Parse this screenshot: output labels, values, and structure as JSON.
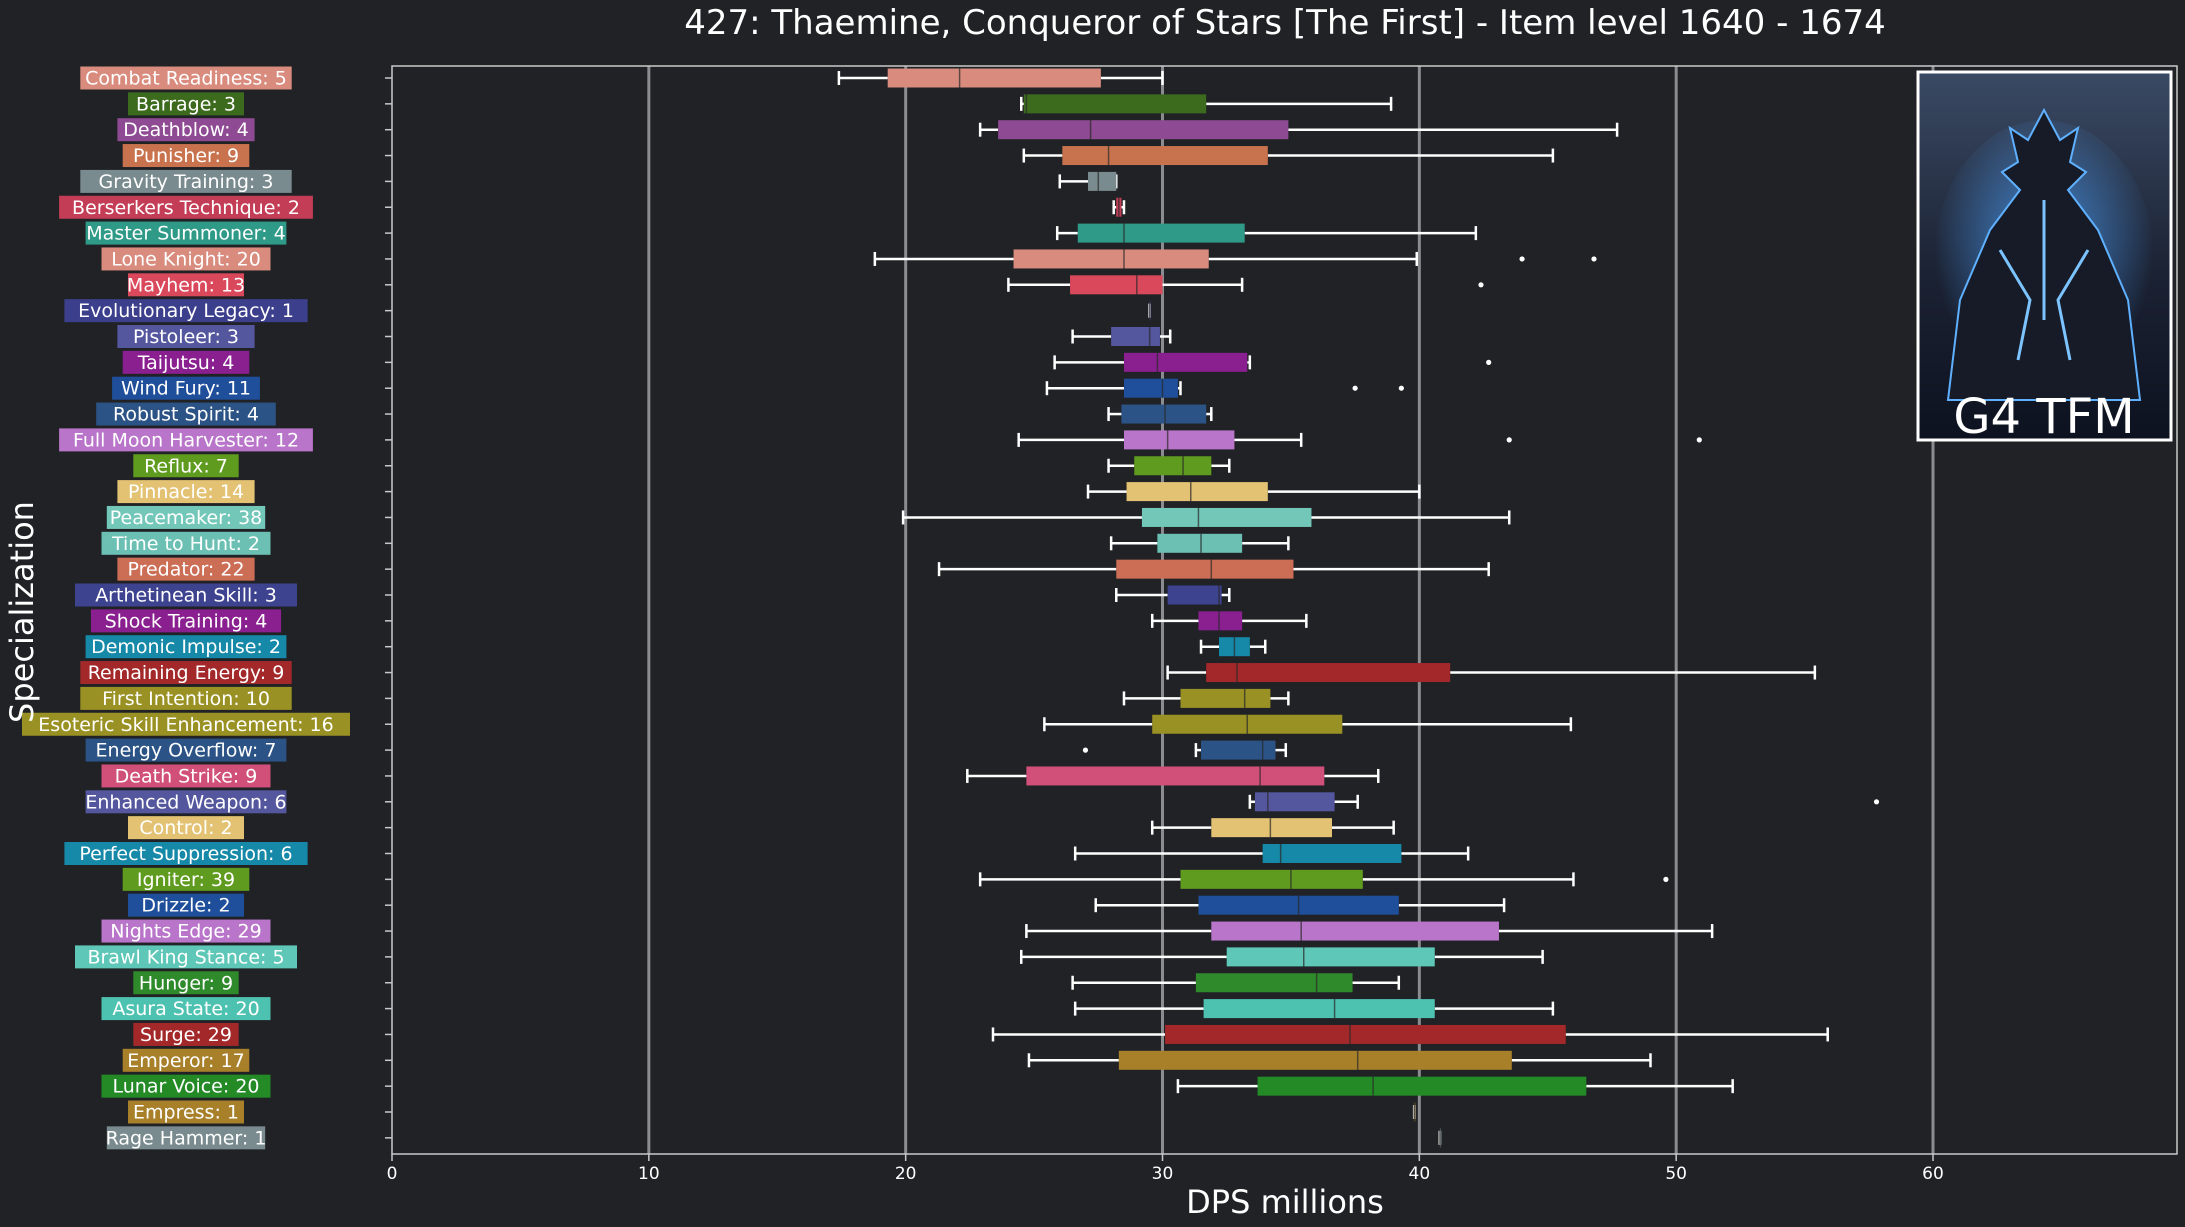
{
  "chart_data": {
    "type": "boxplot",
    "orientation": "horizontal",
    "title": "427: Thaemine, Conqueror of Stars [The First] - Item level 1640 - 1674",
    "xlabel": "DPS millions",
    "ylabel": "Specialization",
    "xlim": [
      0,
      69.5
    ],
    "xticks": [
      0,
      10,
      20,
      30,
      40,
      50,
      60
    ],
    "grid": "vertical",
    "inset": {
      "label": "G4 TFM",
      "image": "boss-portrait"
    },
    "categories": [
      {
        "label": "Combat Readiness: 5",
        "color": "#d98c7e",
        "whisker_low": 17.4,
        "q1": 19.3,
        "median": 22.1,
        "q3": 27.6,
        "whisker_high": 30.0,
        "outliers": []
      },
      {
        "label": "Barrage: 3",
        "color": "#3d6b1e",
        "whisker_low": 24.5,
        "q1": 24.6,
        "median": 24.7,
        "q3": 31.7,
        "whisker_high": 38.9,
        "outliers": []
      },
      {
        "label": "Deathblow: 4",
        "color": "#8e4a92",
        "whisker_low": 22.9,
        "q1": 23.6,
        "median": 27.2,
        "q3": 34.9,
        "whisker_high": 47.7,
        "outliers": []
      },
      {
        "label": "Punisher: 9",
        "color": "#c9734e",
        "whisker_low": 24.6,
        "q1": 26.1,
        "median": 27.9,
        "q3": 34.1,
        "whisker_high": 45.2,
        "outliers": []
      },
      {
        "label": "Gravity Training: 3",
        "color": "#7a8b8f",
        "whisker_low": 26.0,
        "q1": 27.1,
        "median": 27.5,
        "q3": 28.2,
        "whisker_high": 28.2,
        "outliers": []
      },
      {
        "label": "Berserkers Technique: 2",
        "color": "#c43d57",
        "whisker_low": 28.1,
        "q1": 28.2,
        "median": 28.3,
        "q3": 28.4,
        "whisker_high": 28.5,
        "outliers": []
      },
      {
        "label": "Master Summoner: 4",
        "color": "#2e9a87",
        "whisker_low": 25.9,
        "q1": 26.7,
        "median": 28.5,
        "q3": 33.2,
        "whisker_high": 42.2,
        "outliers": []
      },
      {
        "label": "Lone Knight: 20",
        "color": "#d98c7e",
        "whisker_low": 18.8,
        "q1": 24.2,
        "median": 28.5,
        "q3": 31.8,
        "whisker_high": 39.9,
        "outliers": [
          44.0,
          46.8
        ]
      },
      {
        "label": "Mayhem: 13",
        "color": "#d9485b",
        "whisker_low": 24.0,
        "q1": 26.4,
        "median": 29.0,
        "q3": 30.0,
        "whisker_high": 33.1,
        "outliers": [
          42.4
        ]
      },
      {
        "label": "Evolutionary Legacy: 1",
        "color": "#3c3f8c",
        "whisker_low": 29.5,
        "q1": 29.5,
        "median": 29.5,
        "q3": 29.5,
        "whisker_high": 29.5,
        "outliers": []
      },
      {
        "label": "Pistoleer: 3",
        "color": "#54579e",
        "whisker_low": 26.5,
        "q1": 28.0,
        "median": 29.5,
        "q3": 29.9,
        "whisker_high": 30.3,
        "outliers": []
      },
      {
        "label": "Taijutsu: 4",
        "color": "#8a1f8f",
        "whisker_low": 25.8,
        "q1": 28.5,
        "median": 29.8,
        "q3": 33.3,
        "whisker_high": 33.4,
        "outliers": [
          42.7
        ]
      },
      {
        "label": "Wind Fury: 11",
        "color": "#1f4f9a",
        "whisker_low": 25.5,
        "q1": 28.5,
        "median": 30.0,
        "q3": 30.6,
        "whisker_high": 30.7,
        "outliers": [
          37.5,
          39.3
        ]
      },
      {
        "label": "Robust Spirit: 4",
        "color": "#2c5386",
        "whisker_low": 27.9,
        "q1": 28.4,
        "median": 30.1,
        "q3": 31.7,
        "whisker_high": 31.9,
        "outliers": []
      },
      {
        "label": "Full Moon Harvester: 12",
        "color": "#b975c9",
        "whisker_low": 24.4,
        "q1": 28.5,
        "median": 30.2,
        "q3": 32.8,
        "whisker_high": 35.4,
        "outliers": [
          43.5,
          50.9
        ]
      },
      {
        "label": "Reflux: 7",
        "color": "#5f9b1e",
        "whisker_low": 27.9,
        "q1": 28.9,
        "median": 30.8,
        "q3": 31.9,
        "whisker_high": 32.6,
        "outliers": []
      },
      {
        "label": "Pinnacle: 14",
        "color": "#e3c373",
        "whisker_low": 27.1,
        "q1": 28.6,
        "median": 31.1,
        "q3": 34.1,
        "whisker_high": 40.0,
        "outliers": []
      },
      {
        "label": "Peacemaker: 38",
        "color": "#72c7b8",
        "whisker_low": 19.9,
        "q1": 29.2,
        "median": 31.4,
        "q3": 35.8,
        "whisker_high": 43.5,
        "outliers": []
      },
      {
        "label": "Time to Hunt: 2",
        "color": "#6bbfb3",
        "whisker_low": 28.0,
        "q1": 29.8,
        "median": 31.5,
        "q3": 33.1,
        "whisker_high": 34.9,
        "outliers": []
      },
      {
        "label": "Predator: 22",
        "color": "#cc6e55",
        "whisker_low": 21.3,
        "q1": 28.2,
        "median": 31.9,
        "q3": 35.1,
        "whisker_high": 42.7,
        "outliers": []
      },
      {
        "label": "Arthetinean Skill: 3",
        "color": "#3e4390",
        "whisker_low": 28.2,
        "q1": 30.2,
        "median": 32.2,
        "q3": 32.3,
        "whisker_high": 32.6,
        "outliers": []
      },
      {
        "label": "Shock Training: 4",
        "color": "#8a1f8f",
        "whisker_low": 29.6,
        "q1": 31.4,
        "median": 32.2,
        "q3": 33.1,
        "whisker_high": 35.6,
        "outliers": []
      },
      {
        "label": "Demonic Impulse: 2",
        "color": "#1689a8",
        "whisker_low": 31.5,
        "q1": 32.2,
        "median": 32.8,
        "q3": 33.4,
        "whisker_high": 34.0,
        "outliers": []
      },
      {
        "label": "Remaining Energy: 9",
        "color": "#a2282a",
        "whisker_low": 30.2,
        "q1": 31.7,
        "median": 32.9,
        "q3": 41.2,
        "whisker_high": 55.4,
        "outliers": []
      },
      {
        "label": "First Intention: 10",
        "color": "#9a9124",
        "whisker_low": 28.5,
        "q1": 30.7,
        "median": 33.2,
        "q3": 34.2,
        "whisker_high": 34.9,
        "outliers": []
      },
      {
        "label": "Esoteric Skill Enhancement: 16",
        "color": "#9a9124",
        "whisker_low": 25.4,
        "q1": 29.6,
        "median": 33.3,
        "q3": 37.0,
        "whisker_high": 45.9,
        "outliers": []
      },
      {
        "label": "Energy Overflow: 7",
        "color": "#2c5386",
        "whisker_low": 31.3,
        "q1": 31.5,
        "median": 33.9,
        "q3": 34.4,
        "whisker_high": 34.8,
        "outliers": [
          27.0
        ]
      },
      {
        "label": "Death Strike: 9",
        "color": "#d0507a",
        "whisker_low": 22.4,
        "q1": 24.7,
        "median": 33.8,
        "q3": 36.3,
        "whisker_high": 38.4,
        "outliers": []
      },
      {
        "label": "Enhanced Weapon: 6",
        "color": "#54579e",
        "whisker_low": 33.4,
        "q1": 33.6,
        "median": 34.1,
        "q3": 36.7,
        "whisker_high": 37.6,
        "outliers": [
          57.8
        ]
      },
      {
        "label": "Control: 2",
        "color": "#e3c373",
        "whisker_low": 29.6,
        "q1": 31.9,
        "median": 34.2,
        "q3": 36.6,
        "whisker_high": 39.0,
        "outliers": []
      },
      {
        "label": "Perfect Suppression: 6",
        "color": "#1689a8",
        "whisker_low": 26.6,
        "q1": 33.9,
        "median": 34.6,
        "q3": 39.3,
        "whisker_high": 41.9,
        "outliers": []
      },
      {
        "label": "Igniter: 39",
        "color": "#5f9b1e",
        "whisker_low": 22.9,
        "q1": 30.7,
        "median": 35.0,
        "q3": 37.8,
        "whisker_high": 46.0,
        "outliers": [
          49.6
        ]
      },
      {
        "label": "Drizzle: 2",
        "color": "#1f4f9a",
        "whisker_low": 27.4,
        "q1": 31.4,
        "median": 35.3,
        "q3": 39.2,
        "whisker_high": 43.3,
        "outliers": []
      },
      {
        "label": "Nights Edge: 29",
        "color": "#b975c9",
        "whisker_low": 24.7,
        "q1": 31.9,
        "median": 35.4,
        "q3": 43.1,
        "whisker_high": 51.4,
        "outliers": []
      },
      {
        "label": "Brawl King Stance: 5",
        "color": "#5ec7b7",
        "whisker_low": 24.5,
        "q1": 32.5,
        "median": 35.5,
        "q3": 40.6,
        "whisker_high": 44.8,
        "outliers": []
      },
      {
        "label": "Hunger: 9",
        "color": "#2e8a2a",
        "whisker_low": 26.5,
        "q1": 31.3,
        "median": 36.0,
        "q3": 37.4,
        "whisker_high": 39.2,
        "outliers": []
      },
      {
        "label": "Asura State: 20",
        "color": "#4ec2b0",
        "whisker_low": 26.6,
        "q1": 31.6,
        "median": 36.7,
        "q3": 40.6,
        "whisker_high": 45.2,
        "outliers": []
      },
      {
        "label": "Surge: 29",
        "color": "#a2282a",
        "whisker_low": 23.4,
        "q1": 30.1,
        "median": 37.3,
        "q3": 45.7,
        "whisker_high": 55.9,
        "outliers": []
      },
      {
        "label": "Emperor: 17",
        "color": "#a8802a",
        "whisker_low": 24.8,
        "q1": 28.3,
        "median": 37.6,
        "q3": 43.6,
        "whisker_high": 49.0,
        "outliers": []
      },
      {
        "label": "Lunar Voice: 20",
        "color": "#238a26",
        "whisker_low": 30.6,
        "q1": 33.7,
        "median": 38.2,
        "q3": 46.5,
        "whisker_high": 52.2,
        "outliers": []
      },
      {
        "label": "Empress: 1",
        "color": "#a8802a",
        "whisker_low": 39.8,
        "q1": 39.8,
        "median": 39.8,
        "q3": 39.8,
        "whisker_high": 39.8,
        "outliers": []
      },
      {
        "label": "Rage Hammer: 1",
        "color": "#7a8b8f",
        "whisker_low": 40.8,
        "q1": 40.8,
        "median": 40.8,
        "q3": 40.8,
        "whisker_high": 40.8,
        "outliers": []
      }
    ]
  }
}
